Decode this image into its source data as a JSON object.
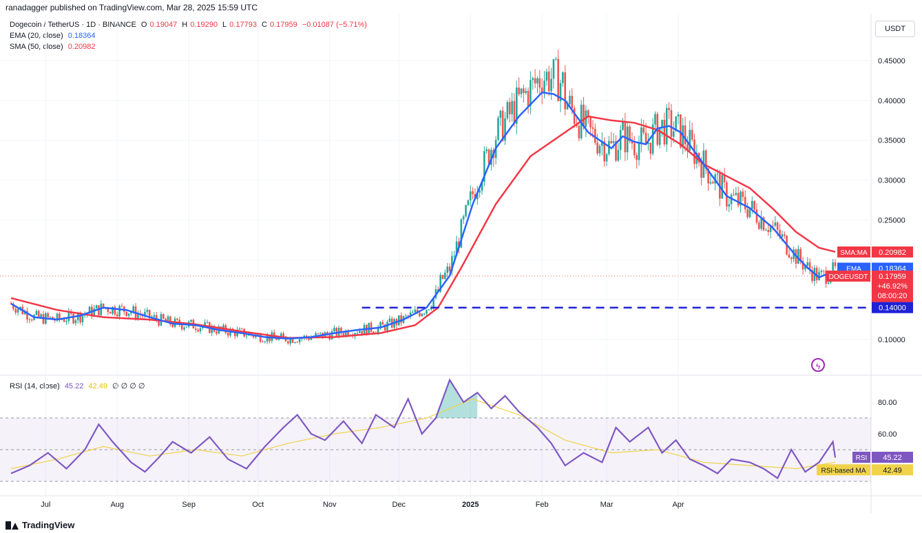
{
  "header": {
    "published": "ranadagger published on TradingView.com, Mar 28, 2025 15:59 UTC"
  },
  "legend": {
    "symbol": "Dogecoin / TetherUS · 1D · BINANCE",
    "o_label": "O",
    "o": "0.19047",
    "h_label": "H",
    "h": "0.19290",
    "l_label": "L",
    "l": "0.17793",
    "c_label": "C",
    "c": "0.17959",
    "change": "−0.01087 (−5.71%)",
    "ema_label": "EMA (20, close)",
    "ema_value": "0.18364",
    "sma_label": "SMA (50, close)",
    "sma_value": "0.20982",
    "rsi_label": "RSI (14, close)",
    "rsi_value": "45.22",
    "rsima_value": "42.49",
    "rsi_extra": "∅ ∅ ∅ ∅"
  },
  "currency_badge": "USDT",
  "footer": {
    "brand": "TradingView"
  },
  "colors": {
    "up": "#26a69a",
    "down": "#ef5350",
    "ema": "#2962ff",
    "sma": "#f23645",
    "rsi": "#7e57c2",
    "rsima": "#f0d34a",
    "support": "#1e22d6"
  },
  "chart_data": [
    {
      "type": "candlestick",
      "title": "Dogecoin / TetherUS · 1D · BINANCE",
      "x_ticks": [
        "Jul",
        "Aug",
        "Sep",
        "Oct",
        "Nov",
        "Dec",
        "2025",
        "Feb",
        "Mar",
        "Apr"
      ],
      "y_ticks": [
        "0.45000",
        "0.40000",
        "0.35000",
        "0.30000",
        "0.25000",
        "0.10000"
      ],
      "ylim": [
        0.08,
        0.49
      ],
      "series": [
        {
          "name": "EMA",
          "values": [
            [
              0,
              0.145
            ],
            [
              10,
              0.128
            ],
            [
              20,
              0.125
            ],
            [
              30,
              0.13
            ],
            [
              40,
              0.14
            ],
            [
              50,
              0.137
            ],
            [
              60,
              0.128
            ],
            [
              70,
              0.12
            ],
            [
              80,
              0.118
            ],
            [
              90,
              0.112
            ],
            [
              100,
              0.108
            ],
            [
              110,
              0.103
            ],
            [
              120,
              0.101
            ],
            [
              130,
              0.103
            ],
            [
              140,
              0.108
            ],
            [
              150,
              0.112
            ],
            [
              160,
              0.115
            ],
            [
              170,
              0.125
            ],
            [
              180,
              0.14
            ],
            [
              190,
              0.18
            ],
            [
              200,
              0.27
            ],
            [
              210,
              0.34
            ],
            [
              220,
              0.38
            ],
            [
              230,
              0.41
            ],
            [
              235,
              0.408
            ],
            [
              240,
              0.4
            ],
            [
              250,
              0.36
            ],
            [
              260,
              0.34
            ],
            [
              265,
              0.355
            ],
            [
              270,
              0.348
            ],
            [
              275,
              0.345
            ],
            [
              280,
              0.365
            ],
            [
              285,
              0.368
            ],
            [
              290,
              0.36
            ],
            [
              300,
              0.32
            ],
            [
              310,
              0.28
            ],
            [
              320,
              0.265
            ],
            [
              330,
              0.24
            ],
            [
              340,
              0.205
            ],
            [
              345,
              0.19
            ],
            [
              350,
              0.178
            ],
            [
              357,
              0.186
            ]
          ]
        },
        {
          "name": "SMA:MA",
          "values": [
            [
              0,
              0.152
            ],
            [
              20,
              0.137
            ],
            [
              40,
              0.128
            ],
            [
              60,
              0.125
            ],
            [
              80,
              0.119
            ],
            [
              100,
              0.11
            ],
            [
              120,
              0.102
            ],
            [
              140,
              0.103
            ],
            [
              160,
              0.108
            ],
            [
              175,
              0.118
            ],
            [
              185,
              0.14
            ],
            [
              195,
              0.19
            ],
            [
              210,
              0.27
            ],
            [
              225,
              0.33
            ],
            [
              240,
              0.36
            ],
            [
              250,
              0.38
            ],
            [
              260,
              0.375
            ],
            [
              270,
              0.372
            ],
            [
              280,
              0.363
            ],
            [
              290,
              0.345
            ],
            [
              300,
              0.32
            ],
            [
              310,
              0.305
            ],
            [
              320,
              0.29
            ],
            [
              330,
              0.264
            ],
            [
              340,
              0.235
            ],
            [
              350,
              0.215
            ],
            [
              357,
              0.21
            ]
          ]
        }
      ],
      "price_tags": {
        "sma_label": "SMA:MA",
        "sma_value": "0.20982",
        "ema_label": "EMA",
        "ema_value": "0.18364",
        "last_label": "DOGEUSDT",
        "last_value": "0.17959",
        "last_change": "+46.92%",
        "countdown": "08:00:20",
        "support_value": "0.14000"
      },
      "support_level": 0.14
    },
    {
      "type": "line",
      "title": "RSI (14, close)",
      "y_ticks": [
        "80.00",
        "60.00"
      ],
      "ylim": [
        25,
        100
      ],
      "bands": [
        30,
        50,
        70
      ],
      "series": [
        {
          "name": "RSI",
          "values": [
            [
              0,
              35
            ],
            [
              8,
              40
            ],
            [
              16,
              48
            ],
            [
              24,
              38
            ],
            [
              32,
              50
            ],
            [
              38,
              66
            ],
            [
              44,
              55
            ],
            [
              52,
              42
            ],
            [
              58,
              36
            ],
            [
              64,
              45
            ],
            [
              70,
              55
            ],
            [
              78,
              48
            ],
            [
              86,
              58
            ],
            [
              94,
              44
            ],
            [
              102,
              38
            ],
            [
              110,
              52
            ],
            [
              118,
              64
            ],
            [
              124,
              72
            ],
            [
              130,
              60
            ],
            [
              136,
              56
            ],
            [
              144,
              68
            ],
            [
              152,
              54
            ],
            [
              158,
              72
            ],
            [
              166,
              64
            ],
            [
              172,
              82
            ],
            [
              178,
              60
            ],
            [
              184,
              70
            ],
            [
              190,
              94
            ],
            [
              196,
              80
            ],
            [
              202,
              86
            ],
            [
              208,
              76
            ],
            [
              214,
              84
            ],
            [
              220,
              74
            ],
            [
              228,
              64
            ],
            [
              234,
              54
            ],
            [
              240,
              40
            ],
            [
              248,
              48
            ],
            [
              256,
              42
            ],
            [
              262,
              64
            ],
            [
              268,
              55
            ],
            [
              276,
              64
            ],
            [
              282,
              48
            ],
            [
              288,
              56
            ],
            [
              294,
              44
            ],
            [
              300,
              40
            ],
            [
              306,
              35
            ],
            [
              312,
              44
            ],
            [
              320,
              42
            ],
            [
              326,
              38
            ],
            [
              332,
              32
            ],
            [
              338,
              50
            ],
            [
              344,
              36
            ],
            [
              350,
              42
            ],
            [
              356,
              55
            ],
            [
              357,
              45
            ]
          ]
        },
        {
          "name": "RSI-based MA",
          "values": [
            [
              0,
              38
            ],
            [
              20,
              44
            ],
            [
              40,
              52
            ],
            [
              60,
              46
            ],
            [
              80,
              50
            ],
            [
              100,
              46
            ],
            [
              120,
              54
            ],
            [
              140,
              60
            ],
            [
              160,
              64
            ],
            [
              180,
              70
            ],
            [
              200,
              82
            ],
            [
              220,
              72
            ],
            [
              240,
              56
            ],
            [
              260,
              48
            ],
            [
              280,
              50
            ],
            [
              300,
              42
            ],
            [
              320,
              40
            ],
            [
              340,
              38
            ],
            [
              357,
              42
            ]
          ]
        }
      ],
      "tags": {
        "rsi_label": "RSI",
        "rsi_value": "45.22",
        "rsima_label": "RSI-based MA",
        "rsima_value": "42.49"
      }
    }
  ]
}
